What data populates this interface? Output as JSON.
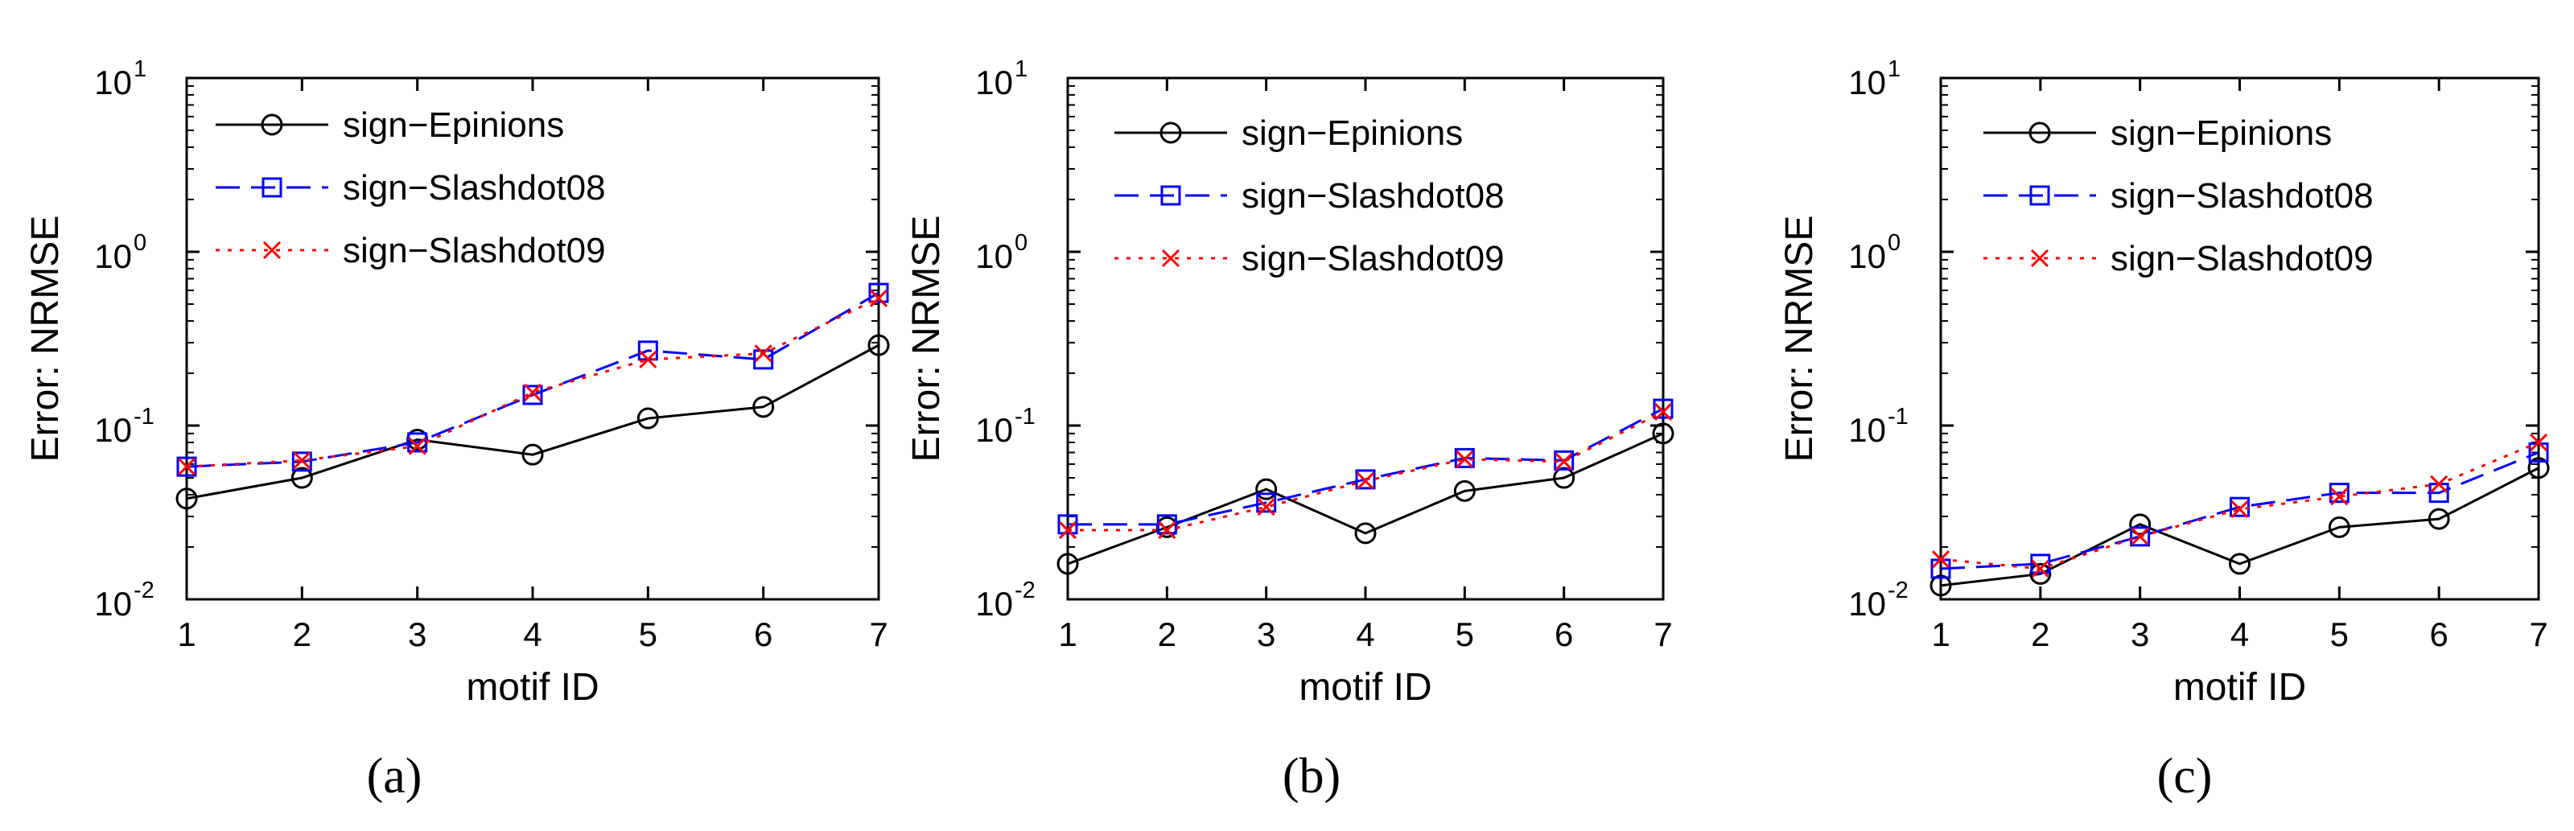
{
  "figure": {
    "captions": [
      "(a)",
      "(b)",
      "(c)"
    ]
  },
  "chart_data": [
    {
      "type": "line",
      "panel": "a",
      "title": "",
      "xlabel": "motif ID",
      "ylabel": "Error: NRMSE",
      "yscale": "log",
      "x": [
        1,
        2,
        3,
        4,
        5,
        6,
        7
      ],
      "xlim": [
        1,
        7
      ],
      "ylim": [
        0.01,
        10
      ],
      "xticks": [
        "1",
        "2",
        "3",
        "4",
        "5",
        "6",
        "7"
      ],
      "yticks": [
        {
          "base": "10",
          "exp": "-2"
        },
        {
          "base": "10",
          "exp": "-1"
        },
        {
          "base": "10",
          "exp": "0"
        },
        {
          "base": "10",
          "exp": "1"
        }
      ],
      "legend_position": "top-left",
      "series": [
        {
          "name": "sign−Epinions",
          "color": "#000000",
          "style": "solid",
          "marker": "circle",
          "values": [
            0.038,
            0.05,
            0.083,
            0.068,
            0.11,
            0.128,
            0.29
          ]
        },
        {
          "name": "sign−Slashdot08",
          "color": "#0000ff",
          "style": "dashed",
          "marker": "square",
          "values": [
            0.058,
            0.062,
            0.08,
            0.15,
            0.27,
            0.24,
            0.58
          ]
        },
        {
          "name": "sign−Slashdot09",
          "color": "#ff0000",
          "style": "dotted",
          "marker": "x",
          "values": [
            0.058,
            0.063,
            0.076,
            0.155,
            0.24,
            0.26,
            0.54
          ]
        }
      ]
    },
    {
      "type": "line",
      "panel": "b",
      "title": "",
      "xlabel": "motif ID",
      "ylabel": "Error: NRMSE",
      "yscale": "log",
      "x": [
        1,
        2,
        3,
        4,
        5,
        6,
        7
      ],
      "xlim": [
        1,
        7
      ],
      "ylim": [
        0.01,
        10
      ],
      "xticks": [
        "1",
        "2",
        "3",
        "4",
        "5",
        "6",
        "7"
      ],
      "yticks": [
        {
          "base": "10",
          "exp": "-2"
        },
        {
          "base": "10",
          "exp": "-1"
        },
        {
          "base": "10",
          "exp": "0"
        },
        {
          "base": "10",
          "exp": "1"
        }
      ],
      "legend_position": "top-left",
      "series": [
        {
          "name": "sign−Epinions",
          "color": "#000000",
          "style": "solid",
          "marker": "circle",
          "values": [
            0.016,
            0.026,
            0.043,
            0.024,
            0.042,
            0.05,
            0.09
          ]
        },
        {
          "name": "sign−Slashdot08",
          "color": "#0000ff",
          "style": "dashed",
          "marker": "square",
          "values": [
            0.027,
            0.027,
            0.036,
            0.049,
            0.065,
            0.063,
            0.125
          ]
        },
        {
          "name": "sign−Slashdot09",
          "color": "#ff0000",
          "style": "dotted",
          "marker": "x",
          "values": [
            0.025,
            0.025,
            0.034,
            0.048,
            0.064,
            0.062,
            0.12
          ]
        }
      ]
    },
    {
      "type": "line",
      "panel": "c",
      "title": "",
      "xlabel": "motif ID",
      "ylabel": "Error: NRMSE",
      "yscale": "log",
      "x": [
        1,
        2,
        3,
        4,
        5,
        6,
        7
      ],
      "xlim": [
        1,
        7
      ],
      "ylim": [
        0.01,
        10
      ],
      "xticks": [
        "1",
        "2",
        "3",
        "4",
        "5",
        "6",
        "7"
      ],
      "yticks": [
        {
          "base": "10",
          "exp": "-2"
        },
        {
          "base": "10",
          "exp": "-1"
        },
        {
          "base": "10",
          "exp": "0"
        },
        {
          "base": "10",
          "exp": "1"
        }
      ],
      "legend_position": "top-left",
      "series": [
        {
          "name": "sign−Epinions",
          "color": "#000000",
          "style": "solid",
          "marker": "circle",
          "values": [
            0.012,
            0.014,
            0.027,
            0.016,
            0.026,
            0.029,
            0.057
          ]
        },
        {
          "name": "sign−Slashdot08",
          "color": "#0000ff",
          "style": "dashed",
          "marker": "square",
          "values": [
            0.015,
            0.016,
            0.023,
            0.034,
            0.041,
            0.041,
            0.07
          ]
        },
        {
          "name": "sign−Slashdot09",
          "color": "#ff0000",
          "style": "dotted",
          "marker": "x",
          "values": [
            0.017,
            0.015,
            0.023,
            0.033,
            0.039,
            0.046,
            0.08
          ]
        }
      ]
    }
  ]
}
